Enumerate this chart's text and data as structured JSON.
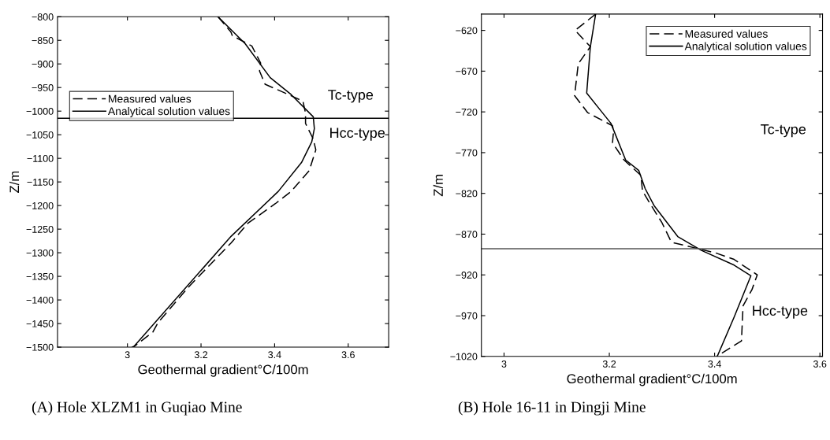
{
  "chart_data": [
    {
      "type": "line",
      "xlabel": "Geothermal gradient°C/100m",
      "ylabel": "Z/m",
      "xlim": [
        2.81,
        3.71
      ],
      "xticks": [
        3,
        3.2,
        3.4,
        3.6
      ],
      "ylim": [
        -1500,
        -800
      ],
      "yticks": [
        -1500,
        -1450,
        -1400,
        -1350,
        -1300,
        -1250,
        -1200,
        -1150,
        -1100,
        -1050,
        -1000,
        -950,
        -900,
        -850,
        -800
      ],
      "grid": false,
      "legend": "left",
      "series": [
        {
          "name": "Measured values",
          "color": "#000000",
          "line_style": "dashed",
          "x": [
            3.246,
            3.281,
            3.285,
            3.338,
            3.362,
            3.359,
            3.374,
            3.438,
            3.477,
            3.484,
            3.484,
            3.505,
            3.512,
            3.494,
            3.445,
            3.402,
            3.328,
            3.282,
            3.168,
            3.083,
            3.069,
            3.019,
            3.012
          ],
          "values": [
            -800,
            -832,
            -840,
            -862,
            -898,
            -915,
            -943,
            -965,
            -979,
            -1004,
            -1026,
            -1059,
            -1082,
            -1126,
            -1170,
            -1196,
            -1237,
            -1279,
            -1371,
            -1448,
            -1468,
            -1498,
            -1500
          ]
        },
        {
          "name": "Analytical solution values",
          "color": "#000000",
          "line_style": "solid",
          "x": [
            3.246,
            3.32,
            3.388,
            3.445,
            3.505,
            3.508,
            3.501,
            3.473,
            3.41,
            3.282,
            3.016
          ],
          "values": [
            -800,
            -857,
            -929,
            -965,
            -1012,
            -1037,
            -1065,
            -1109,
            -1170,
            -1265,
            -1500
          ]
        }
      ],
      "ref_lines": [
        {
          "axis": "y",
          "value": -1015,
          "color": "#000000"
        }
      ],
      "annotations": [
        "Tc-type",
        "Hcc-type",
        "(A) Hole XLZM1 in Guqiao Mine"
      ]
    },
    {
      "type": "line",
      "xlabel": "Geothermal gradient°C/100m",
      "ylabel": "Z/m",
      "xlim": [
        2.957,
        3.605
      ],
      "xticks": [
        3,
        3.2,
        3.4,
        3.6
      ],
      "ylim": [
        -1020,
        -600
      ],
      "yticks": [
        -1020,
        -970,
        -920,
        -870,
        -820,
        -770,
        -720,
        -670,
        -620
      ],
      "grid": false,
      "legend": "top right",
      "series": [
        {
          "name": "Measured values",
          "color": "#000000",
          "line_style": "dashed",
          "x": [
            3.174,
            3.135,
            3.164,
            3.141,
            3.134,
            3.159,
            3.206,
            3.208,
            3.206,
            3.228,
            3.26,
            3.263,
            3.275,
            3.3,
            3.318,
            3.402,
            3.437,
            3.481,
            3.471,
            3.454,
            3.451,
            3.404
          ],
          "values": [
            -600,
            -620,
            -640,
            -661,
            -700,
            -721,
            -737,
            -744,
            -758,
            -779,
            -798,
            -817,
            -830,
            -856,
            -880,
            -893,
            -901,
            -920,
            -938,
            -958,
            -1001,
            -1020
          ]
        },
        {
          "name": "Analytical solution values",
          "color": "#000000",
          "line_style": "solid",
          "x": [
            3.174,
            3.164,
            3.157,
            3.203,
            3.231,
            3.256,
            3.268,
            3.285,
            3.33,
            3.375,
            3.437,
            3.469,
            3.437,
            3.405
          ],
          "values": [
            -600,
            -640,
            -697,
            -734,
            -779,
            -792,
            -814,
            -835,
            -873,
            -890,
            -908,
            -921,
            -972,
            -1020
          ]
        }
      ],
      "ref_lines": [
        {
          "axis": "y",
          "value": -888,
          "color": "#555555"
        }
      ],
      "annotations": [
        "Tc-type",
        "Hcc-type",
        "(B) Hole 16-11 in Dingji Mine"
      ]
    }
  ]
}
